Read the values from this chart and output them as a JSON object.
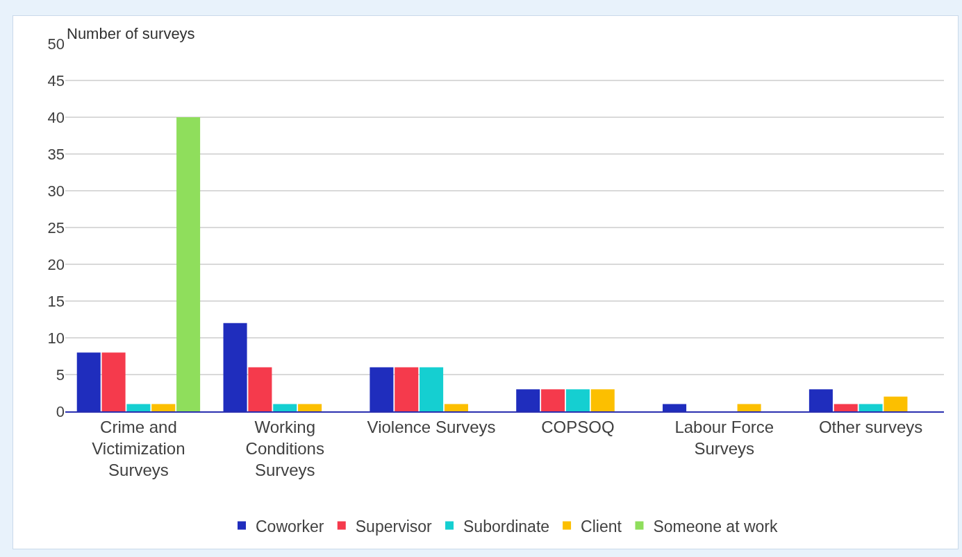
{
  "chart_data": {
    "type": "bar",
    "ylabel": "Number of surveys",
    "categories": [
      "Crime and Victimization Surveys",
      "Working Conditions Surveys",
      "Violence Surveys",
      "COPSOQ",
      "Labour Force Surveys",
      "Other surveys"
    ],
    "series": [
      {
        "name": "Coworker",
        "color": "#1f2dbd",
        "values": [
          8,
          12,
          6,
          3,
          1,
          3
        ]
      },
      {
        "name": "Supervisor",
        "color": "#f53a4c",
        "values": [
          8,
          6,
          6,
          3,
          0,
          1
        ]
      },
      {
        "name": "Subordinate",
        "color": "#15cfd1",
        "values": [
          1,
          1,
          6,
          3,
          0,
          1
        ]
      },
      {
        "name": "Client",
        "color": "#fcbf00",
        "values": [
          1,
          1,
          1,
          3,
          1,
          2
        ]
      },
      {
        "name": "Someone at work",
        "color": "#8fde5c",
        "values": [
          40,
          0,
          0,
          0,
          0,
          0
        ]
      }
    ],
    "ylim": [
      0,
      50
    ],
    "yticks": [
      0,
      5,
      10,
      15,
      20,
      25,
      30,
      35,
      40,
      45,
      50
    ],
    "grid": "y",
    "legend": "bottom"
  }
}
